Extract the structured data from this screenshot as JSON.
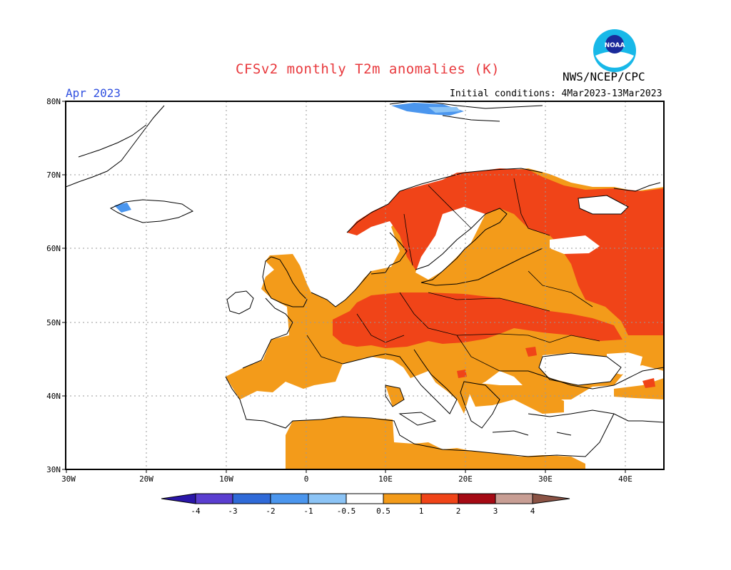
{
  "title": "CFSv2 monthly T2m anomalies (K)",
  "agency": "NWS/NCEP/CPC",
  "logo_text": "NOAA",
  "valid_month": "Apr 2023",
  "initial_conditions": "Initial conditions: 4Mar2023-13Mar2023",
  "lat_labels": [
    "80N",
    "70N",
    "60N",
    "50N",
    "40N",
    "30N"
  ],
  "lon_labels": [
    "30W",
    "20W",
    "10W",
    "0",
    "10E",
    "20E",
    "30E",
    "40E"
  ],
  "legend": {
    "tick_labels": [
      "-4",
      "-3",
      "-2",
      "-1",
      "-0.5",
      "0.5",
      "1",
      "2",
      "3",
      "4"
    ],
    "colors": [
      "#2a16a8",
      "#5a3ed0",
      "#2f6ad8",
      "#4b96ee",
      "#8cc4f6",
      "#ffffff",
      "#f39b1a",
      "#f04418",
      "#a50a14",
      "#c89e94",
      "#8a5244"
    ]
  },
  "colors": {
    "title": "#e8383c",
    "month": "#3050e0",
    "anomaly_05_1": "#f39b1a",
    "anomaly_1_2": "#f04418",
    "cold": "#4b96ee"
  }
}
